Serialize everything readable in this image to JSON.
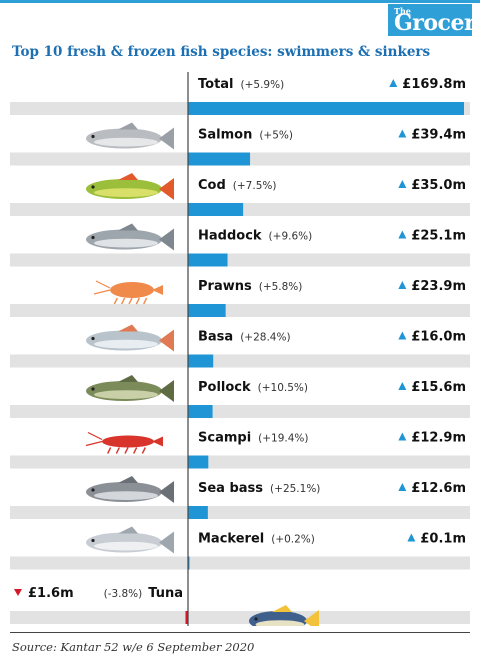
{
  "brand": {
    "small": "The",
    "name": "Grocer"
  },
  "chart_data": {
    "type": "bar",
    "title": "Top 10 fresh & frozen fish species: swimmers & sinkers",
    "unit": "£m",
    "categories": [
      "Total",
      "Salmon",
      "Cod",
      "Haddock",
      "Prawns",
      "Basa",
      "Pollock",
      "Scampi",
      "Sea bass",
      "Mackerel",
      "Tuna"
    ],
    "series": [
      {
        "values": [
          169.8,
          39.4,
          35.0,
          25.1,
          23.9,
          16.0,
          15.6,
          12.9,
          12.6,
          0.1,
          -1.6
        ],
        "value_labels": [
          "£169.8m",
          "£39.4m",
          "£35.0m",
          "£25.1m",
          "£23.9m",
          "£16.0m",
          "£15.6m",
          "£12.9m",
          "£12.6m",
          "£0.1m",
          "£1.6m"
        ],
        "pct_labels": [
          "(+5.9%)",
          "(+5%)",
          "(+7.5%)",
          "(+9.6%)",
          "(+5.8%)",
          "(+28.4%)",
          "(+10.5%)",
          "(+19.4%)",
          "(+25.1%)",
          "(+0.2%)",
          "(-3.8%)"
        ],
        "direction": [
          "up",
          "up",
          "up",
          "up",
          "up",
          "up",
          "up",
          "up",
          "up",
          "up",
          "down"
        ]
      }
    ],
    "colors": {
      "positive": "#1f95d6",
      "negative": "#d7182a",
      "track": "#e2e2e2",
      "up_arrow": "#1f95d6",
      "down_arrow": "#d7182a"
    },
    "icons": [
      "",
      "salmon-fish",
      "perch-fish",
      "haddock-fish",
      "prawn",
      "basa-fish",
      "pollock-fish",
      "scampi-lobster",
      "sea-bass-fish",
      "mackerel-fish",
      "tuna-fish"
    ]
  },
  "source": "Source: Kantar 52 w/e 6 September 2020"
}
